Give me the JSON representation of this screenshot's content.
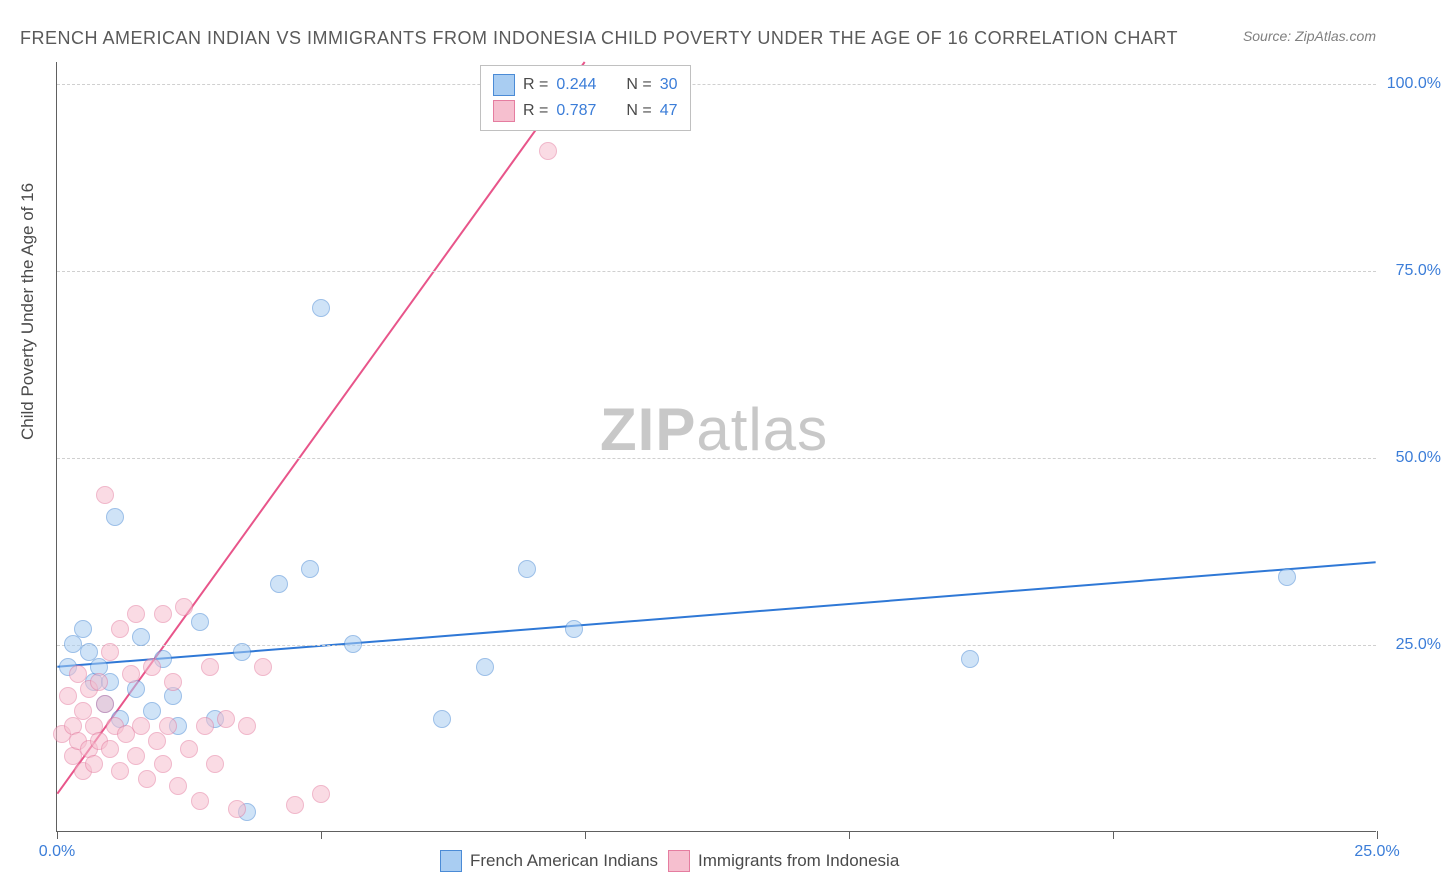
{
  "title": "FRENCH AMERICAN INDIAN VS IMMIGRANTS FROM INDONESIA CHILD POVERTY UNDER THE AGE OF 16 CORRELATION CHART",
  "source": "Source: ZipAtlas.com",
  "y_axis_label": "Child Poverty Under the Age of 16",
  "watermark": {
    "part1": "ZIP",
    "part2": "atlas"
  },
  "chart": {
    "type": "scatter",
    "xlim": [
      0,
      25
    ],
    "ylim": [
      0,
      103
    ],
    "x_ticks": [
      0,
      5,
      10,
      15,
      20,
      25
    ],
    "x_labels": [
      {
        "v": 0,
        "t": "0.0%"
      },
      {
        "v": 25,
        "t": "25.0%"
      }
    ],
    "y_labels": [
      {
        "v": 25,
        "t": "25.0%"
      },
      {
        "v": 50,
        "t": "50.0%"
      },
      {
        "v": 75,
        "t": "75.0%"
      },
      {
        "v": 100,
        "t": "100.0%"
      }
    ],
    "background_color": "#ffffff",
    "grid_color": "#d0d0d0",
    "series": [
      {
        "name": "French American Indians",
        "fill": "#a9cdf2",
        "stroke": "#4b8bd6",
        "opacity": 0.55,
        "radius": 9,
        "trend": {
          "x1": 0,
          "y1": 22,
          "x2": 25,
          "y2": 36,
          "color": "#2f78d6",
          "width": 2
        },
        "r_value": "0.244",
        "n_value": "30",
        "points": [
          [
            0.2,
            22
          ],
          [
            0.3,
            25
          ],
          [
            0.5,
            27
          ],
          [
            0.6,
            24
          ],
          [
            0.7,
            20
          ],
          [
            0.8,
            22
          ],
          [
            0.9,
            17
          ],
          [
            1.0,
            20
          ],
          [
            1.1,
            42
          ],
          [
            1.2,
            15
          ],
          [
            1.5,
            19
          ],
          [
            1.6,
            26
          ],
          [
            1.8,
            16
          ],
          [
            2.0,
            23
          ],
          [
            2.2,
            18
          ],
          [
            2.3,
            14
          ],
          [
            2.7,
            28
          ],
          [
            3.0,
            15
          ],
          [
            3.5,
            24
          ],
          [
            3.6,
            2.5
          ],
          [
            4.2,
            33
          ],
          [
            4.8,
            35
          ],
          [
            5.0,
            70
          ],
          [
            5.6,
            25
          ],
          [
            7.3,
            15
          ],
          [
            8.1,
            22
          ],
          [
            8.9,
            35
          ],
          [
            9.8,
            27
          ],
          [
            17.3,
            23
          ],
          [
            23.3,
            34
          ]
        ]
      },
      {
        "name": "Immigrants from Indonesia",
        "fill": "#f6bfcf",
        "stroke": "#e57da0",
        "opacity": 0.55,
        "radius": 9,
        "trend": {
          "x1": 0,
          "y1": 5,
          "x2": 10,
          "y2": 103,
          "color": "#e8558a",
          "width": 2
        },
        "r_value": "0.787",
        "n_value": "47",
        "points": [
          [
            0.1,
            13
          ],
          [
            0.2,
            18
          ],
          [
            0.3,
            10
          ],
          [
            0.3,
            14
          ],
          [
            0.4,
            21
          ],
          [
            0.4,
            12
          ],
          [
            0.5,
            16
          ],
          [
            0.5,
            8
          ],
          [
            0.6,
            11
          ],
          [
            0.6,
            19
          ],
          [
            0.7,
            9
          ],
          [
            0.7,
            14
          ],
          [
            0.8,
            20
          ],
          [
            0.8,
            12
          ],
          [
            0.9,
            17
          ],
          [
            0.9,
            45
          ],
          [
            1.0,
            11
          ],
          [
            1.0,
            24
          ],
          [
            1.1,
            14
          ],
          [
            1.2,
            8
          ],
          [
            1.2,
            27
          ],
          [
            1.3,
            13
          ],
          [
            1.4,
            21
          ],
          [
            1.5,
            10
          ],
          [
            1.5,
            29
          ],
          [
            1.6,
            14
          ],
          [
            1.7,
            7
          ],
          [
            1.8,
            22
          ],
          [
            1.9,
            12
          ],
          [
            2.0,
            29
          ],
          [
            2.0,
            9
          ],
          [
            2.1,
            14
          ],
          [
            2.2,
            20
          ],
          [
            2.3,
            6
          ],
          [
            2.4,
            30
          ],
          [
            2.5,
            11
          ],
          [
            2.7,
            4
          ],
          [
            2.8,
            14
          ],
          [
            2.9,
            22
          ],
          [
            3.0,
            9
          ],
          [
            3.2,
            15
          ],
          [
            3.4,
            3
          ],
          [
            3.6,
            14
          ],
          [
            3.9,
            22
          ],
          [
            4.5,
            3.5
          ],
          [
            5.0,
            5
          ],
          [
            9.3,
            91
          ]
        ]
      }
    ]
  },
  "legend_top": {
    "rows": [
      {
        "swatch_fill": "#a9cdf2",
        "swatch_stroke": "#4b8bd6",
        "r_label": "R =",
        "r_val": "0.244",
        "n_label": "N =",
        "n_val": "30"
      },
      {
        "swatch_fill": "#f6bfcf",
        "swatch_stroke": "#e57da0",
        "r_label": "R =",
        "r_val": "0.787",
        "n_label": "N =",
        "n_val": "47"
      }
    ]
  },
  "legend_bottom": [
    {
      "swatch_fill": "#a9cdf2",
      "swatch_stroke": "#4b8bd6",
      "label": "French American Indians"
    },
    {
      "swatch_fill": "#f6bfcf",
      "swatch_stroke": "#e57da0",
      "label": "Immigrants from Indonesia"
    }
  ]
}
